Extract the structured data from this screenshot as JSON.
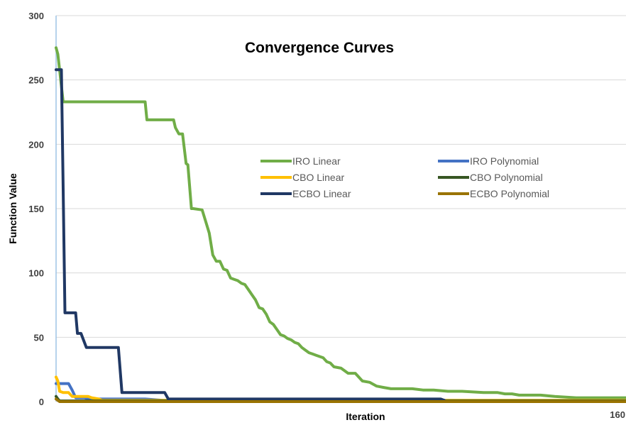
{
  "chart_data": {
    "type": "line",
    "title": "Convergence Curves",
    "xlabel": "Iteration",
    "ylabel": "Function Value",
    "xlim": [
      0,
      160
    ],
    "ylim": [
      0,
      300
    ],
    "yticks": [
      0,
      50,
      100,
      150,
      200,
      250,
      300
    ],
    "xtick_labels": [
      "160"
    ],
    "grid": "horizontal",
    "legend_position": "center-right",
    "series": [
      {
        "name": "IRO Linear",
        "color": "#70ad47",
        "x": [
          0,
          0.5,
          2,
          25,
          25.5,
          33,
          33.5,
          34.5,
          35.5,
          36.5,
          37,
          38,
          38.5,
          41,
          42,
          43,
          44,
          45,
          46,
          47,
          48,
          49,
          50,
          51,
          52,
          53,
          54,
          55,
          56,
          57,
          58,
          59,
          60,
          61,
          62,
          63,
          64,
          65,
          66,
          67,
          68,
          69,
          70,
          71,
          72,
          73,
          74,
          75,
          76,
          77,
          78,
          80,
          82,
          84,
          86,
          88,
          90,
          92,
          94,
          96,
          98,
          100,
          103,
          106,
          110,
          114,
          120,
          124,
          126,
          127,
          128,
          130,
          136,
          140,
          146,
          150,
          160
        ],
        "y": [
          275,
          270,
          233,
          233,
          219,
          219,
          213,
          208,
          208,
          185,
          184,
          150,
          150,
          149,
          140,
          131,
          114,
          109,
          109,
          103,
          102,
          96,
          95,
          94,
          92,
          91,
          87,
          83,
          79,
          73,
          72,
          68,
          62,
          60,
          56,
          52,
          51,
          49,
          48,
          46,
          45,
          42,
          40,
          38,
          37,
          36,
          35,
          34,
          31,
          30,
          27,
          26,
          22,
          22,
          16,
          15,
          12,
          11,
          10,
          10,
          10,
          10,
          9,
          9,
          8,
          8,
          7,
          7,
          6,
          6,
          6,
          5,
          5,
          4,
          3,
          3,
          3
        ]
      },
      {
        "name": "IRO Polynomial",
        "color": "#4472c4",
        "x": [
          0,
          3.5,
          4.5,
          5.5,
          8,
          9,
          25,
          30,
          160
        ],
        "y": [
          14,
          14,
          9,
          3,
          3,
          2,
          2,
          1,
          1
        ]
      },
      {
        "name": "CBO Linear",
        "color": "#ffc000",
        "x": [
          0,
          0.5,
          1,
          2,
          3.5,
          4.5,
          5.5,
          9,
          10,
          12,
          13,
          160
        ],
        "y": [
          19,
          16,
          8,
          7,
          7,
          4,
          4,
          4,
          3,
          2,
          1,
          1
        ]
      },
      {
        "name": "CBO Polynomial",
        "color": "#375623",
        "x": [
          0,
          0.5,
          1,
          160
        ],
        "y": [
          4,
          2,
          0.5,
          0.5
        ]
      },
      {
        "name": "ECBO Linear",
        "color": "#203864",
        "x": [
          0,
          1.5,
          2,
          2.5,
          5.5,
          6,
          7,
          8.5,
          17.5,
          18.5,
          30.5,
          31.5,
          108,
          109
        ],
        "y": [
          258,
          258,
          165,
          69,
          69,
          53,
          53,
          42,
          42,
          7,
          7,
          2,
          2,
          1
        ]
      },
      {
        "name": "ECBO Polynomial",
        "color": "#997300",
        "x": [
          0,
          0.5,
          1,
          160
        ],
        "y": [
          2,
          1,
          0,
          0
        ]
      }
    ]
  }
}
